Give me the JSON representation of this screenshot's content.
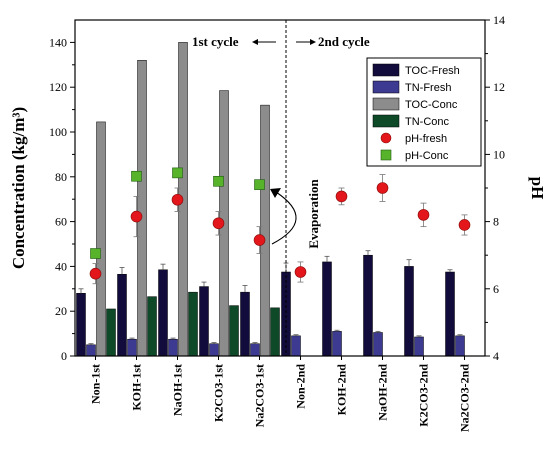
{
  "chart_data": {
    "type": "bar",
    "categories": [
      "Non-1st",
      "KOH-1st",
      "NaOH-1st",
      "K2CO3-1st",
      "Na2CO3-1st",
      "Non-2nd",
      "KOH-2nd",
      "NaOH-2nd",
      "K2CO3-2nd",
      "Na2CO3-2nd"
    ],
    "ylabel": "Concentration (kg/m³)",
    "y2label": "pH",
    "ylim": [
      0,
      150
    ],
    "y2lim": [
      4,
      14
    ],
    "yticks": [
      "0",
      "20",
      "40",
      "60",
      "80",
      "100",
      "120",
      "140"
    ],
    "y2ticks": [
      "4",
      "6",
      "8",
      "10",
      "12",
      "14"
    ],
    "series": [
      {
        "name": "TOC-Fresh",
        "axis": "left",
        "color": "#120c3c",
        "values": [
          28,
          36.5,
          38.5,
          31,
          28.5,
          37.5,
          42,
          45,
          40,
          37.5
        ],
        "errors": [
          2,
          3,
          2.5,
          2,
          3,
          4,
          2.5,
          2,
          3,
          1
        ]
      },
      {
        "name": "TN-Fresh",
        "axis": "left",
        "color": "#3d3a92",
        "values": [
          5,
          7.5,
          7.5,
          5.5,
          5.5,
          9,
          11,
          10.5,
          8.5,
          9
        ],
        "errors": [
          0.5,
          0.5,
          0.5,
          0.5,
          0.5,
          0.5,
          0.5,
          0.5,
          0.5,
          0.5
        ]
      },
      {
        "name": "TOC-Conc",
        "axis": "left",
        "color": "#8c8c8c",
        "values": [
          104.5,
          132,
          140,
          118.5,
          112,
          null,
          null,
          null,
          null,
          null
        ]
      },
      {
        "name": "TN-Conc",
        "axis": "left",
        "color": "#0e4a28",
        "values": [
          21,
          26.5,
          28.5,
          22.5,
          21.5,
          null,
          null,
          null,
          null,
          null
        ]
      },
      {
        "name": "pH-fresh",
        "axis": "right",
        "color": "#e3171b",
        "marker": "circle",
        "values": [
          6.45,
          8.15,
          8.65,
          7.95,
          7.45,
          6.5,
          8.75,
          9.0,
          8.2,
          7.9
        ],
        "errors": [
          0.3,
          0.6,
          0.35,
          0.35,
          0.4,
          0.3,
          0.25,
          0.4,
          0.35,
          0.3
        ]
      },
      {
        "name": "pH-Conc",
        "axis": "right",
        "color": "#57b32a",
        "marker": "square",
        "values": [
          7.05,
          9.35,
          9.45,
          9.2,
          9.1,
          null,
          null,
          null,
          null,
          null
        ]
      }
    ],
    "annotations": [
      "1st cycle",
      "2nd cycle",
      "Evaporation"
    ],
    "legend_position": "top-right",
    "grid": false
  }
}
